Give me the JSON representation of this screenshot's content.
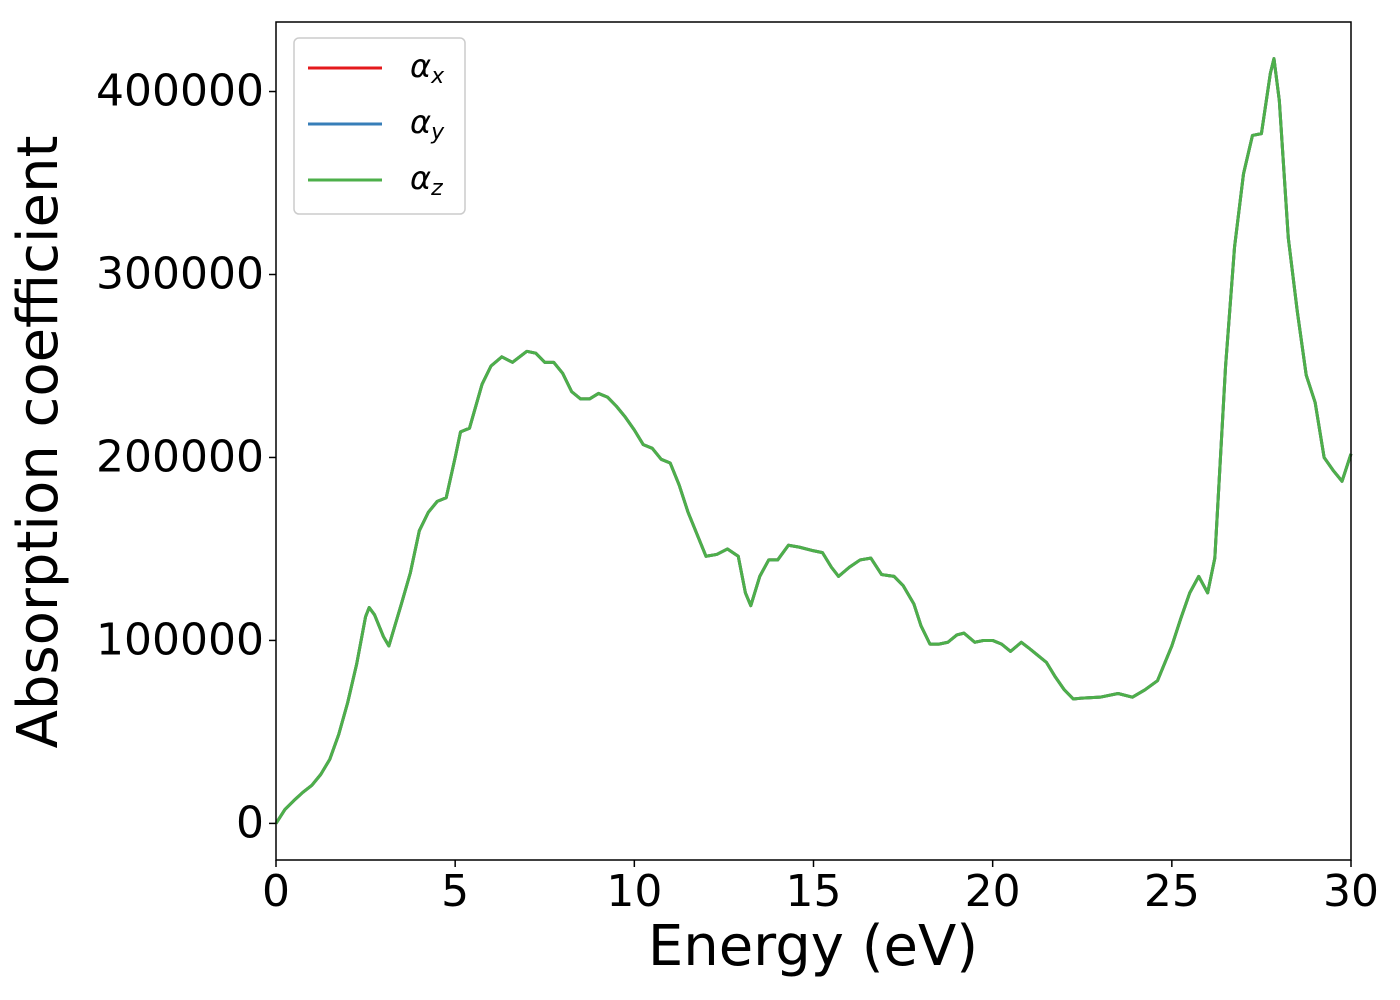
{
  "chart_data": {
    "type": "line",
    "xlabel": "Energy (eV)",
    "ylabel": "Absorption coefficient",
    "x": [
      0,
      0.25,
      0.5,
      0.75,
      1.0,
      1.25,
      1.5,
      1.75,
      2.0,
      2.25,
      2.5,
      2.6,
      2.75,
      3.0,
      3.15,
      3.5,
      3.75,
      4.0,
      4.25,
      4.5,
      4.75,
      5.0,
      5.15,
      5.4,
      5.75,
      6.0,
      6.3,
      6.6,
      7.0,
      7.25,
      7.5,
      7.75,
      8.0,
      8.25,
      8.5,
      8.75,
      9.0,
      9.25,
      9.5,
      9.75,
      10.0,
      10.25,
      10.5,
      10.75,
      11.0,
      11.25,
      11.5,
      11.75,
      12.0,
      12.3,
      12.6,
      12.9,
      13.1,
      13.25,
      13.5,
      13.75,
      14.0,
      14.3,
      14.6,
      15.0,
      15.25,
      15.5,
      15.7,
      16.0,
      16.3,
      16.6,
      16.9,
      17.25,
      17.5,
      17.8,
      18.0,
      18.25,
      18.5,
      18.75,
      19.0,
      19.2,
      19.5,
      19.75,
      20.0,
      20.25,
      20.5,
      20.8,
      21.0,
      21.25,
      21.5,
      21.75,
      22.0,
      22.25,
      22.5,
      23.0,
      23.5,
      23.9,
      24.25,
      24.6,
      25.0,
      25.25,
      25.5,
      25.75,
      26.0,
      26.2,
      26.5,
      26.75,
      27.0,
      27.25,
      27.5,
      27.75,
      27.85,
      28.0,
      28.25,
      28.5,
      28.75,
      29.0,
      29.25,
      29.5,
      29.75,
      30.0
    ],
    "series": [
      {
        "name": "αx",
        "color": "#e41a1c",
        "values": [
          0,
          7650,
          12500,
          17000,
          20800,
          26800,
          35000,
          48600,
          66000,
          87000,
          113000,
          118000,
          114000,
          102000,
          97000,
          120000,
          137000,
          160000,
          170000,
          176000,
          178000,
          200000,
          214000,
          216000,
          240000,
          250000,
          255000,
          252000,
          258000,
          257000,
          252000,
          252000,
          246000,
          236000,
          232000,
          232000,
          235000,
          233000,
          228000,
          222000,
          215000,
          207000,
          205000,
          199000,
          197000,
          185000,
          170000,
          158000,
          146000,
          147000,
          150000,
          146000,
          126000,
          119000,
          135000,
          144000,
          144000,
          152000,
          151000,
          149000,
          148000,
          140000,
          135000,
          140000,
          144000,
          145000,
          136000,
          135000,
          130000,
          120000,
          108000,
          98000,
          98000,
          99000,
          103000,
          104000,
          99000,
          100000,
          100000,
          98000,
          94000,
          99000,
          96000,
          92000,
          88000,
          80000,
          73000,
          68000,
          68500,
          69000,
          71000,
          69000,
          73000,
          78000,
          97000,
          112000,
          126000,
          135000,
          126000,
          145000,
          250000,
          315000,
          355000,
          376000,
          377000,
          410000,
          418000,
          395000,
          320000,
          280000,
          245000,
          230000,
          200000,
          193000,
          187000,
          202000
        ]
      },
      {
        "name": "αy",
        "color": "#377eb8",
        "values": [
          0,
          7650,
          12500,
          17000,
          20800,
          26800,
          35000,
          48600,
          66000,
          87000,
          113000,
          118000,
          114000,
          102000,
          97000,
          120000,
          137000,
          160000,
          170000,
          176000,
          178000,
          200000,
          214000,
          216000,
          240000,
          250000,
          255000,
          252000,
          258000,
          257000,
          252000,
          252000,
          246000,
          236000,
          232000,
          232000,
          235000,
          233000,
          228000,
          222000,
          215000,
          207000,
          205000,
          199000,
          197000,
          185000,
          170000,
          158000,
          146000,
          147000,
          150000,
          146000,
          126000,
          119000,
          135000,
          144000,
          144000,
          152000,
          151000,
          149000,
          148000,
          140000,
          135000,
          140000,
          144000,
          145000,
          136000,
          135000,
          130000,
          120000,
          108000,
          98000,
          98000,
          99000,
          103000,
          104000,
          99000,
          100000,
          100000,
          98000,
          94000,
          99000,
          96000,
          92000,
          88000,
          80000,
          73000,
          68000,
          68500,
          69000,
          71000,
          69000,
          73000,
          78000,
          97000,
          112000,
          126000,
          135000,
          126000,
          145000,
          250000,
          315000,
          355000,
          376000,
          377000,
          410000,
          418000,
          395000,
          320000,
          280000,
          245000,
          230000,
          200000,
          193000,
          187000,
          202000
        ]
      },
      {
        "name": "αz",
        "color": "#4daf4a",
        "values": [
          0,
          7650,
          12500,
          17000,
          20800,
          26800,
          35000,
          48600,
          66000,
          87000,
          113000,
          118000,
          114000,
          102000,
          97000,
          120000,
          137000,
          160000,
          170000,
          176000,
          178000,
          200000,
          214000,
          216000,
          240000,
          250000,
          255000,
          252000,
          258000,
          257000,
          252000,
          252000,
          246000,
          236000,
          232000,
          232000,
          235000,
          233000,
          228000,
          222000,
          215000,
          207000,
          205000,
          199000,
          197000,
          185000,
          170000,
          158000,
          146000,
          147000,
          150000,
          146000,
          126000,
          119000,
          135000,
          144000,
          144000,
          152000,
          151000,
          149000,
          148000,
          140000,
          135000,
          140000,
          144000,
          145000,
          136000,
          135000,
          130000,
          120000,
          108000,
          98000,
          98000,
          99000,
          103000,
          104000,
          99000,
          100000,
          100000,
          98000,
          94000,
          99000,
          96000,
          92000,
          88000,
          80000,
          73000,
          68000,
          68500,
          69000,
          71000,
          69000,
          73000,
          78000,
          97000,
          112000,
          126000,
          135000,
          126000,
          145000,
          250000,
          315000,
          355000,
          376000,
          377000,
          410000,
          418000,
          395000,
          320000,
          280000,
          245000,
          230000,
          200000,
          193000,
          187000,
          202000
        ]
      }
    ],
    "xlim": [
      0,
      30
    ],
    "xticks": [
      0,
      5,
      10,
      15,
      20,
      25,
      30
    ],
    "ylim": [
      -20000,
      438000
    ],
    "yticks": [
      0,
      100000,
      200000,
      300000,
      400000
    ],
    "grid": false,
    "legend": "upper left"
  }
}
